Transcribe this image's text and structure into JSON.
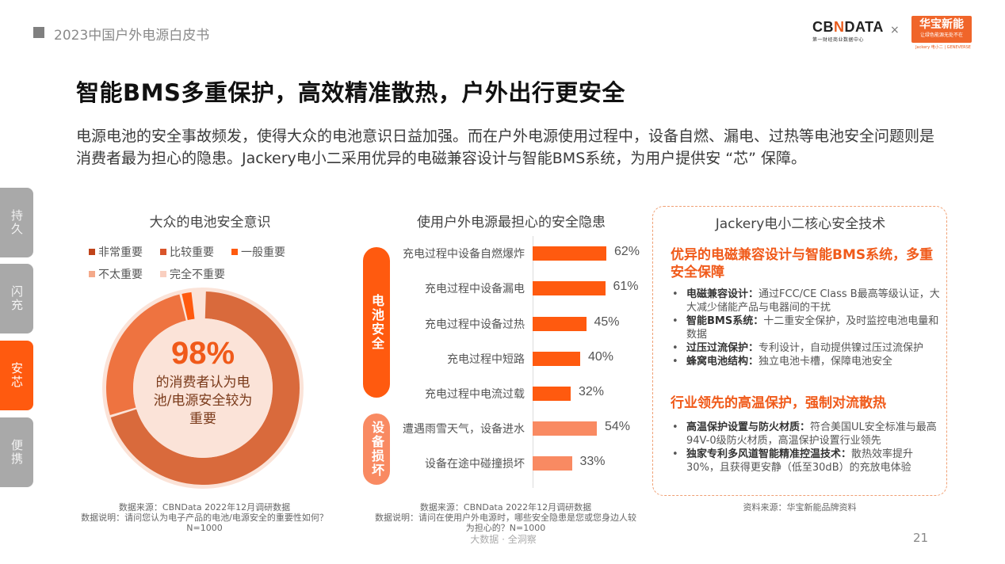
{
  "header": {
    "report_title": "2023中国户外电源白皮书",
    "logo_cbn": "CBNDATA",
    "logo_cbn_sub": "第一财经商业数据中心",
    "logo_times": "×",
    "logo_hb_main": "华宝新能",
    "logo_hb_sub": "让绿色能源无处不在",
    "logo_hb_foot": "Jackery 电小二 | GENEVERSE"
  },
  "title": "智能BMS多重保护，高效精准散热，户外出行更安全",
  "intro": "电源电池的安全事故频发，使得大众的电池意识日益加强。而在户外电源使用过程中，设备自燃、漏电、过热等电池安全问题则是消费者最为担心的隐患。Jackery电小二采用优异的电磁兼容设计与智能BMS系统，为用户提供安 “芯” 保障。",
  "side_tabs": [
    {
      "label": "持久",
      "active": false
    },
    {
      "label": "闪充",
      "active": false
    },
    {
      "label": "安芯",
      "active": true
    },
    {
      "label": "便携",
      "active": false
    }
  ],
  "donut_panel": {
    "title": "大众的电池安全意识",
    "center_value": "98%",
    "center_text": "的消费者认为电池/电源安全较为重要",
    "source_line1": "数据来源：CBNData 2022年12月调研数据",
    "source_line2": "数据说明：请问您认为电子产品的电池/电源安全的重要性如何？N=1000"
  },
  "bar_panel": {
    "title": "使用户外电源最担心的安全隐患",
    "groups": [
      {
        "label": "电池安全",
        "color": "#FF5A0F"
      },
      {
        "label": "设备损坏",
        "color": "#F98A62"
      }
    ],
    "source_line1": "数据来源：CBNData 2022年12月调研数据",
    "source_line2": "数据说明：请问在使用户外电源时，哪些安全隐患是您或您身边人较为担心的？N=1000"
  },
  "tech_panel": {
    "title": "Jackery电小二核心安全技术",
    "heading1": "优异的电磁兼容设计与智能BMS系统，多重安全保障",
    "list1": [
      {
        "bold": "电磁兼容设计：",
        "text": "通过FCC/CE Class B最高等级认证，大大减少储能产品与电器间的干扰"
      },
      {
        "bold": "智能BMS系统：",
        "text": "十二重安全保护，及时监控电池电量和数据"
      },
      {
        "bold": "过压过流保护：",
        "text": "专利设计，自动提供镍过压过流保护"
      },
      {
        "bold": "蜂窝电池结构：",
        "text": "独立电池卡槽，保障电池安全"
      }
    ],
    "heading2": "行业领先的高温保护，强制对流散热",
    "list2": [
      {
        "bold": "高温保护设置与防火材质：",
        "text": "符合美国UL安全标准与最高94V-0级防火材质，高温保护设置行业领先"
      },
      {
        "bold": "独家专利多风道智能精准控温技术：",
        "text": "散热效率提升30%，且获得更安静（低至30dB）的充放电体验"
      }
    ],
    "source": "资料来源：华宝新能品牌资料"
  },
  "footer": {
    "center": "大数据 · 全洞察",
    "page": "21"
  },
  "chart_data": [
    {
      "type": "pie",
      "title": "大众的电池安全意识",
      "categories": [
        "非常重要",
        "比较重要",
        "一般重要",
        "不太重要",
        "完全不重要"
      ],
      "values": [
        70,
        26,
        2,
        1,
        1
      ],
      "colors": [
        "#D96A3C",
        "#EE7340",
        "#FF5A0F",
        "#F4A98A",
        "#F9CFC0"
      ],
      "annotation": "98% 的消费者认为电池/电源安全较为重要",
      "legend_position": "top"
    },
    {
      "type": "bar",
      "orientation": "horizontal",
      "title": "使用户外电源最担心的安全隐患",
      "categories": [
        "充电过程中设备自燃爆炸",
        "充电过程中设备漏电",
        "充电过程中设备过热",
        "充电过程中短路",
        "充电过程中电流过载",
        "遭遇雨雪天气，设备进水",
        "设备在途中碰撞损坏"
      ],
      "values": [
        62,
        61,
        45,
        40,
        32,
        54,
        33
      ],
      "labels": [
        "62%",
        "61%",
        "45%",
        "40%",
        "32%",
        "54%",
        "33%"
      ],
      "groups": [
        "电池安全",
        "电池安全",
        "电池安全",
        "电池安全",
        "电池安全",
        "设备损坏",
        "设备损坏"
      ],
      "colors": [
        "#FF5A0F",
        "#FF5A0F",
        "#FF5A0F",
        "#FF5A0F",
        "#FF5A0F",
        "#F98A62",
        "#F98A62"
      ],
      "unit": "%",
      "grid": false
    }
  ]
}
